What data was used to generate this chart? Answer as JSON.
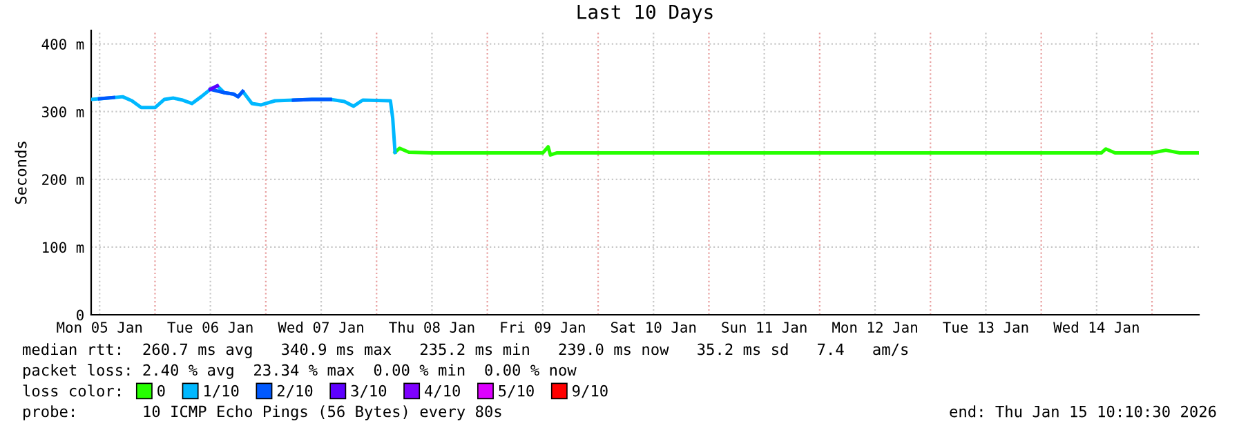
{
  "chart_data": {
    "type": "line",
    "title": "Last 10 Days",
    "ylabel": "Seconds",
    "legend_title": "loss color:",
    "xlim": [
      "2026-01-05T10:10",
      "2026-01-15T10:10"
    ],
    "xticks": [
      {
        "value": "2026-01-05T12:00",
        "label": "Mon 05 Jan"
      },
      {
        "value": "2026-01-06T12:00",
        "label": "Tue 06 Jan"
      },
      {
        "value": "2026-01-07T12:00",
        "label": "Wed 07 Jan"
      },
      {
        "value": "2026-01-08T12:00",
        "label": "Thu 08 Jan"
      },
      {
        "value": "2026-01-09T12:00",
        "label": "Fri 09 Jan"
      },
      {
        "value": "2026-01-10T12:00",
        "label": "Sat 10 Jan"
      },
      {
        "value": "2026-01-11T12:00",
        "label": "Sun 11 Jan"
      },
      {
        "value": "2026-01-12T12:00",
        "label": "Mon 12 Jan"
      },
      {
        "value": "2026-01-13T12:00",
        "label": "Tue 13 Jan"
      },
      {
        "value": "2026-01-14T12:00",
        "label": "Wed 14 Jan"
      }
    ],
    "ylim": [
      0,
      420
    ],
    "yticks": [
      0,
      {
        "value": 100,
        "label": "100 m"
      },
      {
        "value": 200,
        "label": "200 m"
      },
      {
        "value": 300,
        "label": "300 m"
      },
      {
        "value": 400,
        "label": "400 m"
      }
    ],
    "grid": true,
    "legend": "bottom left",
    "ref_lines": [
      {
        "axis": "x",
        "value": "2026-01-06T00:00",
        "color": "#e8a0a0",
        "line_style": "dotted"
      },
      {
        "axis": "x",
        "value": "2026-01-07T00:00",
        "color": "#e8a0a0",
        "line_style": "dotted"
      },
      {
        "axis": "x",
        "value": "2026-01-08T00:00",
        "color": "#e8a0a0",
        "line_style": "dotted"
      },
      {
        "axis": "x",
        "value": "2026-01-09T00:00",
        "color": "#e8a0a0",
        "line_style": "dotted"
      },
      {
        "axis": "x",
        "value": "2026-01-10T00:00",
        "color": "#e8a0a0",
        "line_style": "dotted"
      },
      {
        "axis": "x",
        "value": "2026-01-11T00:00",
        "color": "#e8a0a0",
        "line_style": "dotted"
      },
      {
        "axis": "x",
        "value": "2026-01-12T00:00",
        "color": "#e8a0a0",
        "line_style": "dotted"
      },
      {
        "axis": "x",
        "value": "2026-01-13T00:00",
        "color": "#e8a0a0",
        "line_style": "dotted"
      },
      {
        "axis": "x",
        "value": "2026-01-14T00:00",
        "color": "#e8a0a0",
        "line_style": "dotted"
      },
      {
        "axis": "x",
        "value": "2026-01-15T00:00",
        "color": "#e8a0a0",
        "line_style": "dotted"
      }
    ],
    "series": [
      {
        "name": "0",
        "color": "#26ff00",
        "x": [
          "2026-01-08T04:00",
          "2026-01-08T05:00",
          "2026-01-08T07:00",
          "2026-01-08T12:00",
          "2026-01-09T00:00",
          "2026-01-09T12:00",
          "2026-01-09T13:10",
          "2026-01-09T13:40",
          "2026-01-09T15:00",
          "2026-01-10T00:00",
          "2026-01-11T00:00",
          "2026-01-12T00:00",
          "2026-01-13T00:00",
          "2026-01-14T00:00",
          "2026-01-14T13:00",
          "2026-01-14T14:00",
          "2026-01-14T16:00",
          "2026-01-15T00:00",
          "2026-01-15T03:00",
          "2026-01-15T06:00",
          "2026-01-15T10:10"
        ],
        "values": [
          240,
          246,
          240,
          239,
          239,
          239,
          248,
          236,
          239,
          239,
          239,
          239,
          239,
          239,
          239,
          245,
          239,
          239,
          243,
          239,
          239
        ]
      },
      {
        "name": "1/10",
        "color": "#00b8ff",
        "x": [
          "2026-01-05T10:10",
          "2026-01-05T14:00",
          "2026-01-05T17:00",
          "2026-01-05T19:00",
          "2026-01-05T21:00",
          "2026-01-06T00:00",
          "2026-01-06T02:00",
          "2026-01-06T04:00",
          "2026-01-06T06:00",
          "2026-01-06T08:00",
          "2026-01-06T10:00",
          "2026-01-06T12:00",
          "2026-01-06T13:30",
          "2026-01-06T15:00",
          "2026-01-06T17:00",
          "2026-01-06T18:00",
          "2026-01-06T19:00",
          "2026-01-06T21:00",
          "2026-01-06T23:00",
          "2026-01-07T02:00",
          "2026-01-07T06:00",
          "2026-01-07T10:00",
          "2026-01-07T14:00",
          "2026-01-07T17:00",
          "2026-01-07T19:00",
          "2026-01-07T21:00",
          "2026-01-08T03:00",
          "2026-01-08T03:30",
          "2026-01-08T04:00"
        ],
        "values": [
          318,
          320,
          322,
          316,
          306,
          306,
          318,
          320,
          317,
          312,
          322,
          333,
          338,
          328,
          326,
          322,
          330,
          312,
          310,
          316,
          317,
          318,
          318,
          315,
          308,
          317,
          316,
          290,
          240
        ]
      },
      {
        "name": "2/10",
        "color": "#0059ff",
        "x": [
          "2026-01-05T12:00",
          "2026-01-05T15:00",
          "2026-01-05T16:00",
          "2026-01-06T12:00",
          "2026-01-06T15:00",
          "2026-01-06T17:00",
          "2026-01-06T18:00",
          "2026-01-06T19:00",
          "2026-01-06T19:30",
          "2026-01-07T06:00",
          "2026-01-07T10:00",
          "2026-01-07T14:00"
        ],
        "values": [
          319,
          321,
          null,
          333,
          328,
          326,
          322,
          330,
          null,
          317,
          318,
          318
        ]
      },
      {
        "name": "3/10",
        "color": "#5e00ff",
        "x": [
          "2026-01-06T12:00",
          "2026-01-06T13:30"
        ],
        "values": [
          333,
          338
        ]
      },
      {
        "name": "4/10",
        "color": "#7e00ff"
      },
      {
        "name": "5/10",
        "color": "#dd00ff"
      },
      {
        "name": "9/10",
        "color": "#ff0000"
      }
    ],
    "annotations": [
      "median rtt:  260.7 ms avg   340.9 ms max   235.2 ms min   239.0 ms now   35.2 ms sd   7.4   am/s",
      "packet loss: 2.40 % avg  23.34 % max  0.00 % min  0.00 % now",
      "probe:       10 ICMP Echo Pings (56 Bytes) every 80s",
      "end: Thu Jan 15 10:10:30 2026"
    ]
  }
}
